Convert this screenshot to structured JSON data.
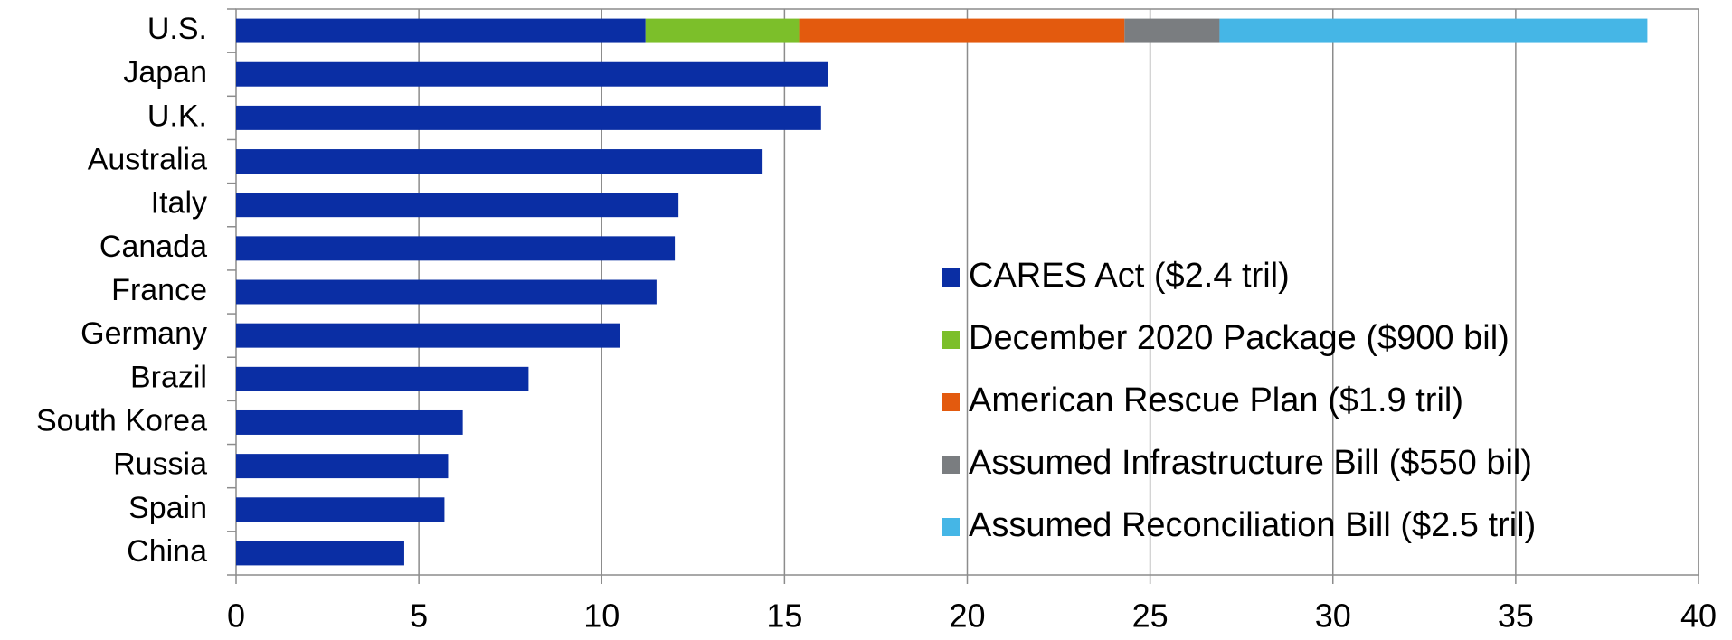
{
  "chart_data": {
    "type": "stacked_barh",
    "categories": [
      "U.S.",
      "Japan",
      "U.K.",
      "Australia",
      "Italy",
      "Canada",
      "France",
      "Germany",
      "Brazil",
      "South Korea",
      "Russia",
      "Spain",
      "China"
    ],
    "series": [
      {
        "name": "CARES Act ($2.4 tril)",
        "color": "#0a2ea4",
        "values": [
          11.2,
          16.2,
          16.0,
          14.4,
          12.1,
          12.0,
          11.5,
          10.5,
          8.0,
          6.2,
          5.8,
          5.7,
          4.6
        ]
      },
      {
        "name": "December 2020 Package ($900 bil)",
        "color": "#7cbf2a",
        "values": [
          4.2,
          null,
          null,
          null,
          null,
          null,
          null,
          null,
          null,
          null,
          null,
          null,
          null
        ]
      },
      {
        "name": "American Rescue Plan ($1.9 tril)",
        "color": "#e35a0e",
        "values": [
          8.9,
          null,
          null,
          null,
          null,
          null,
          null,
          null,
          null,
          null,
          null,
          null,
          null
        ]
      },
      {
        "name": "Assumed Infrastructure Bill ($550 bil)",
        "color": "#7a7d80",
        "values": [
          2.6,
          null,
          null,
          null,
          null,
          null,
          null,
          null,
          null,
          null,
          null,
          null,
          null
        ]
      },
      {
        "name": "Assumed Reconciliation Bill ($2.5 tril)",
        "color": "#45b6e6",
        "values": [
          11.7,
          null,
          null,
          null,
          null,
          null,
          null,
          null,
          null,
          null,
          null,
          null,
          null
        ]
      }
    ],
    "xlim": [
      0,
      40
    ],
    "xticks": [
      0,
      5,
      10,
      15,
      20,
      25,
      30,
      35,
      40
    ],
    "grid": true,
    "legend": "lower right"
  }
}
